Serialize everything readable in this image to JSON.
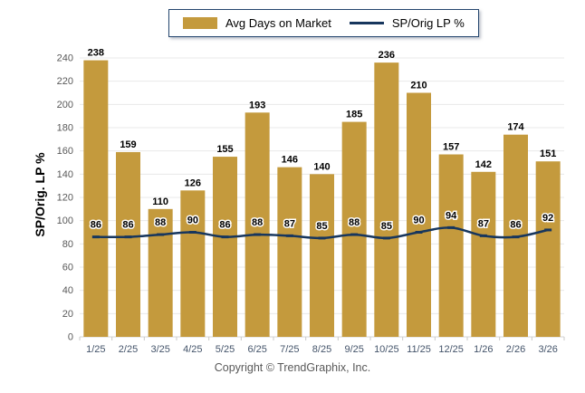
{
  "legend": {
    "bar_label": "Avg Days on Market",
    "line_label": "SP/Orig LP %"
  },
  "footer": {
    "copyright": "Copyright © TrendGraphix, Inc."
  },
  "colors": {
    "bar": "#C49A3D",
    "line": "#17365D",
    "grid": "#E8E8E8",
    "axis": "#D5D5D5",
    "tick_mark": "#C9C9C9",
    "y_tick_label": "#595959",
    "x_tick_label": "#44546A",
    "value_label": "#000000",
    "legend_border": "#24466E"
  },
  "chart_data": {
    "type": "bar",
    "categories": [
      "1/25",
      "2/25",
      "3/25",
      "4/25",
      "5/25",
      "6/25",
      "7/25",
      "8/25",
      "9/25",
      "10/25",
      "11/25",
      "12/25",
      "1/26",
      "2/26",
      "3/26"
    ],
    "series": [
      {
        "name": "Avg Days on Market",
        "type": "bar",
        "values": [
          238,
          159,
          110,
          126,
          155,
          193,
          146,
          140,
          185,
          236,
          210,
          157,
          142,
          174,
          151
        ]
      },
      {
        "name": "SP/Orig LP %",
        "type": "line",
        "values": [
          86,
          86,
          88,
          90,
          86,
          88,
          87,
          85,
          88,
          85,
          90,
          94,
          87,
          86,
          92
        ]
      }
    ],
    "title": "",
    "xlabel": "",
    "ylabel": "SP/Orig. LP %",
    "ylim": [
      0,
      240
    ],
    "ytick_step": 20,
    "grid": true,
    "legend_position": "top"
  }
}
